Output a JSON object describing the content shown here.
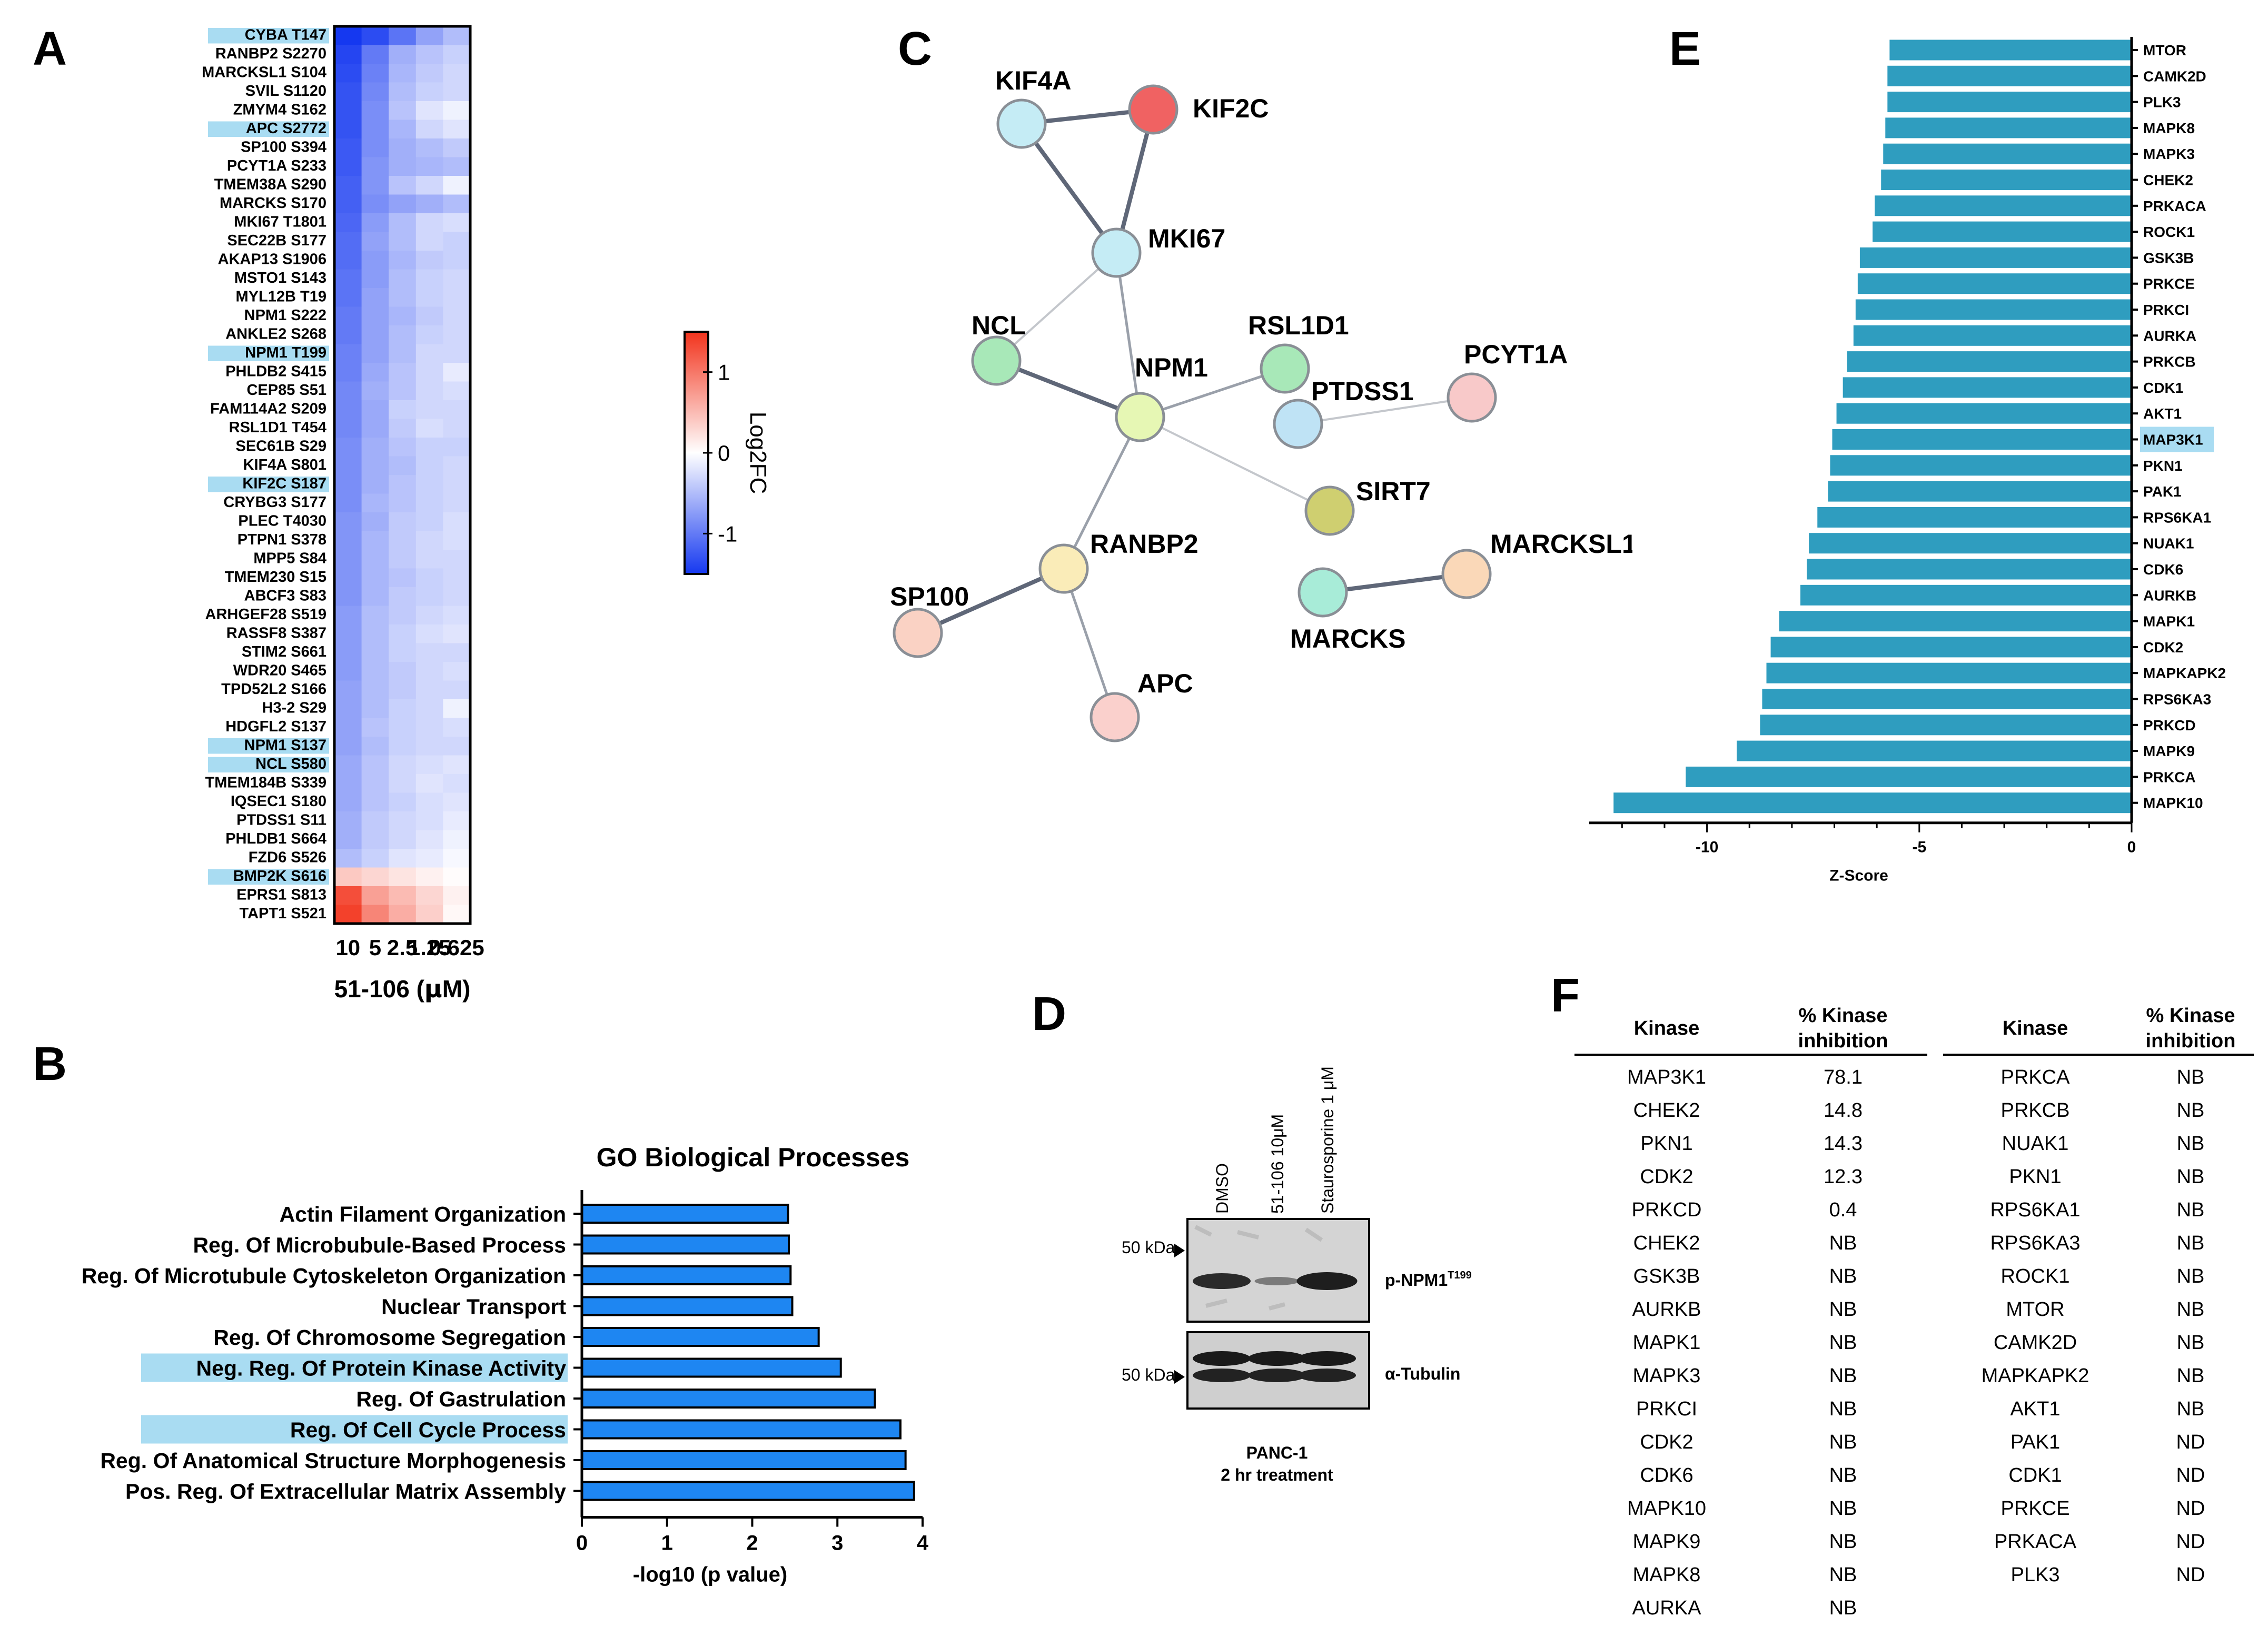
{
  "panels": {
    "A": "A",
    "B": "B",
    "C": "C",
    "D": "D",
    "E": "E",
    "F": "F"
  },
  "colors": {
    "blue_strong": "#1538f0",
    "red_strong": "#f2331c",
    "bar_blue": "#1e86f2",
    "bar_teal": "#2f9dbf",
    "highlight": "#a9dcf2"
  },
  "heatmap": {
    "columns": [
      "10",
      "5",
      "2.5",
      "1.25",
      "0.625"
    ],
    "xlabel_prefix": "51-106 (",
    "xlabel_mu": "μ",
    "xlabel_suffix": "M)",
    "colorbar_label": "Log2FC",
    "colorbar_ticks": [
      "1",
      "0",
      "-1"
    ],
    "colorbar_range": [
      -1.5,
      1.5
    ],
    "rows": [
      {
        "label": "CYBA T147",
        "hl": true,
        "v": [
          -1.6,
          -1.35,
          -1.05,
          -0.7,
          -0.5
        ]
      },
      {
        "label": "RANBP2 S2270",
        "hl": false,
        "v": [
          -1.4,
          -1.0,
          -0.6,
          -0.45,
          -0.35
        ]
      },
      {
        "label": "MARCKSL1 S104",
        "hl": false,
        "v": [
          -1.35,
          -0.95,
          -0.55,
          -0.4,
          -0.3
        ]
      },
      {
        "label": "SVIL S1120",
        "hl": false,
        "v": [
          -1.3,
          -0.9,
          -0.5,
          -0.35,
          -0.3
        ]
      },
      {
        "label": "ZMYM4 S162",
        "hl": false,
        "v": [
          -1.3,
          -0.85,
          -0.45,
          -0.2,
          -0.1
        ]
      },
      {
        "label": "APC S2772",
        "hl": true,
        "v": [
          -1.3,
          -0.85,
          -0.55,
          -0.3,
          -0.2
        ]
      },
      {
        "label": "SP100 S394",
        "hl": false,
        "v": [
          -1.25,
          -0.85,
          -0.6,
          -0.5,
          -0.4
        ]
      },
      {
        "label": "PCYT1A S233",
        "hl": false,
        "v": [
          -1.25,
          -0.8,
          -0.6,
          -0.55,
          -0.5
        ]
      },
      {
        "label": "TMEM38A S290",
        "hl": false,
        "v": [
          -1.2,
          -0.8,
          -0.45,
          -0.3,
          -0.1
        ]
      },
      {
        "label": "MARCKS S170",
        "hl": false,
        "v": [
          -1.2,
          -0.85,
          -0.7,
          -0.6,
          -0.5
        ]
      },
      {
        "label": "MKI67 T1801",
        "hl": false,
        "v": [
          -1.15,
          -0.75,
          -0.5,
          -0.3,
          -0.25
        ]
      },
      {
        "label": "SEC22B S177",
        "hl": false,
        "v": [
          -1.1,
          -0.7,
          -0.5,
          -0.3,
          -0.35
        ]
      },
      {
        "label": "AKAP13 S1906",
        "hl": false,
        "v": [
          -1.1,
          -0.75,
          -0.55,
          -0.4,
          -0.35
        ]
      },
      {
        "label": "MSTO1 S143",
        "hl": false,
        "v": [
          -1.05,
          -0.75,
          -0.5,
          -0.35,
          -0.3
        ]
      },
      {
        "label": "MYL12B T19",
        "hl": false,
        "v": [
          -1.05,
          -0.7,
          -0.5,
          -0.35,
          -0.3
        ]
      },
      {
        "label": "NPM1 S222",
        "hl": false,
        "v": [
          -1.0,
          -0.7,
          -0.55,
          -0.4,
          -0.3
        ]
      },
      {
        "label": "ANKLE2 S268",
        "hl": false,
        "v": [
          -1.0,
          -0.7,
          -0.5,
          -0.35,
          -0.3
        ]
      },
      {
        "label": "NPM1 T199",
        "hl": true,
        "v": [
          -0.95,
          -0.7,
          -0.5,
          -0.3,
          -0.3
        ]
      },
      {
        "label": "PHLDB2 S415",
        "hl": false,
        "v": [
          -0.95,
          -0.65,
          -0.45,
          -0.3,
          -0.15
        ]
      },
      {
        "label": "CEP85 S51",
        "hl": false,
        "v": [
          -0.9,
          -0.6,
          -0.45,
          -0.3,
          -0.25
        ]
      },
      {
        "label": "FAM114A2 S209",
        "hl": false,
        "v": [
          -0.9,
          -0.65,
          -0.35,
          -0.3,
          -0.3
        ]
      },
      {
        "label": "RSL1D1 T454",
        "hl": false,
        "v": [
          -0.9,
          -0.65,
          -0.4,
          -0.25,
          -0.3
        ]
      },
      {
        "label": "SEC61B S29",
        "hl": false,
        "v": [
          -0.85,
          -0.6,
          -0.45,
          -0.35,
          -0.35
        ]
      },
      {
        "label": "KIF4A S801",
        "hl": false,
        "v": [
          -0.85,
          -0.6,
          -0.5,
          -0.35,
          -0.3
        ]
      },
      {
        "label": "KIF2C S187",
        "hl": true,
        "v": [
          -0.85,
          -0.6,
          -0.45,
          -0.35,
          -0.3
        ]
      },
      {
        "label": "CRYBG3 S177",
        "hl": false,
        "v": [
          -0.85,
          -0.55,
          -0.45,
          -0.35,
          -0.3
        ]
      },
      {
        "label": "PLEC T4030",
        "hl": false,
        "v": [
          -0.8,
          -0.6,
          -0.4,
          -0.35,
          -0.25
        ]
      },
      {
        "label": "PTPN1 S378",
        "hl": false,
        "v": [
          -0.8,
          -0.55,
          -0.4,
          -0.3,
          -0.25
        ]
      },
      {
        "label": "MPP5 S84",
        "hl": false,
        "v": [
          -0.8,
          -0.55,
          -0.4,
          -0.3,
          -0.3
        ]
      },
      {
        "label": "TMEM230 S15",
        "hl": false,
        "v": [
          -0.8,
          -0.55,
          -0.45,
          -0.35,
          -0.3
        ]
      },
      {
        "label": "ABCF3 S83",
        "hl": false,
        "v": [
          -0.8,
          -0.55,
          -0.4,
          -0.35,
          -0.3
        ]
      },
      {
        "label": "ARHGEF28 S519",
        "hl": false,
        "v": [
          -0.75,
          -0.5,
          -0.4,
          -0.3,
          -0.25
        ]
      },
      {
        "label": "RASSF8 S387",
        "hl": false,
        "v": [
          -0.75,
          -0.5,
          -0.35,
          -0.25,
          -0.2
        ]
      },
      {
        "label": "STIM2 S661",
        "hl": false,
        "v": [
          -0.75,
          -0.5,
          -0.35,
          -0.3,
          -0.3
        ]
      },
      {
        "label": "WDR20 S465",
        "hl": false,
        "v": [
          -0.75,
          -0.5,
          -0.4,
          -0.3,
          -0.25
        ]
      },
      {
        "label": "TPD52L2 S166",
        "hl": false,
        "v": [
          -0.7,
          -0.5,
          -0.4,
          -0.3,
          -0.3
        ]
      },
      {
        "label": "H3-2 S29",
        "hl": false,
        "v": [
          -0.7,
          -0.5,
          -0.35,
          -0.3,
          -0.1
        ]
      },
      {
        "label": "HDGFL2 S137",
        "hl": false,
        "v": [
          -0.7,
          -0.45,
          -0.35,
          -0.3,
          -0.25
        ]
      },
      {
        "label": "NPM1 S137",
        "hl": true,
        "v": [
          -0.7,
          -0.5,
          -0.35,
          -0.3,
          -0.3
        ]
      },
      {
        "label": "NCL S580",
        "hl": true,
        "v": [
          -0.65,
          -0.45,
          -0.3,
          -0.25,
          -0.2
        ]
      },
      {
        "label": "TMEM184B S339",
        "hl": false,
        "v": [
          -0.65,
          -0.45,
          -0.3,
          -0.2,
          -0.25
        ]
      },
      {
        "label": "IQSEC1 S180",
        "hl": false,
        "v": [
          -0.65,
          -0.45,
          -0.35,
          -0.25,
          -0.2
        ]
      },
      {
        "label": "PTDSS1 S11",
        "hl": false,
        "v": [
          -0.6,
          -0.4,
          -0.3,
          -0.25,
          -0.15
        ]
      },
      {
        "label": "PHLDB1 S664",
        "hl": false,
        "v": [
          -0.6,
          -0.4,
          -0.3,
          -0.2,
          -0.1
        ]
      },
      {
        "label": "FZD6 S526",
        "hl": false,
        "v": [
          -0.5,
          -0.35,
          -0.2,
          -0.15,
          -0.05
        ]
      },
      {
        "label": "BMP2K S616",
        "hl": true,
        "v": [
          0.4,
          0.3,
          0.2,
          0.1,
          0.02
        ]
      },
      {
        "label": "EPRS1 S813",
        "hl": false,
        "v": [
          1.3,
          0.7,
          0.5,
          0.3,
          0.1
        ]
      },
      {
        "label": "TAPT1 S521",
        "hl": false,
        "v": [
          1.4,
          0.9,
          0.6,
          0.35,
          0.05
        ]
      }
    ]
  },
  "go": {
    "title": "GO Biological Processes",
    "xlabel": "-log10 (p value)",
    "ticks": [
      "0",
      "1",
      "2",
      "3",
      "4"
    ],
    "xlim": [
      0,
      4
    ],
    "bars": [
      {
        "label": "Actin Filament Organization",
        "value": 2.42,
        "hl": false
      },
      {
        "label": "Reg. Of Microbubule-Based Process",
        "value": 2.43,
        "hl": false
      },
      {
        "label": "Reg. Of Microtubule Cytoskeleton Organization",
        "value": 2.45,
        "hl": false
      },
      {
        "label": "Nuclear Transport",
        "value": 2.47,
        "hl": false
      },
      {
        "label": "Reg. Of Chromosome Segregation",
        "value": 2.78,
        "hl": false
      },
      {
        "label": "Neg. Reg. Of Protein Kinase Activity",
        "value": 3.04,
        "hl": true
      },
      {
        "label": "Reg. Of Gastrulation",
        "value": 3.44,
        "hl": false
      },
      {
        "label": "Reg. Of Cell Cycle Process",
        "value": 3.74,
        "hl": true
      },
      {
        "label": "Reg. Of Anatomical Structure Morphogenesis",
        "value": 3.8,
        "hl": false
      },
      {
        "label": "Pos. Reg. Of Extracellular Matrix Assembly",
        "value": 3.9,
        "hl": false
      }
    ]
  },
  "network": {
    "nodes": [
      {
        "id": "KIF4A",
        "label": "KIF4A",
        "color": "#c5ecf5"
      },
      {
        "id": "KIF2C",
        "label": "KIF2C",
        "color": "#f06262"
      },
      {
        "id": "MKI67",
        "label": "MKI67",
        "color": "#c5ecf5"
      },
      {
        "id": "NCL",
        "label": "NCL",
        "color": "#a8e8b8"
      },
      {
        "id": "NPM1",
        "label": "NPM1",
        "color": "#e6f7b4"
      },
      {
        "id": "RSL1D1",
        "label": "RSL1D1",
        "color": "#a8e8b8"
      },
      {
        "id": "PTDSS1",
        "label": "PTDSS1",
        "color": "#bfe3f5"
      },
      {
        "id": "PCYT1A",
        "label": "PCYT1A",
        "color": "#f8c9c9"
      },
      {
        "id": "SIRT7",
        "label": "SIRT7",
        "color": "#cfcf70"
      },
      {
        "id": "RANBP2",
        "label": "RANBP2",
        "color": "#faecb8"
      },
      {
        "id": "SP100",
        "label": "SP100",
        "color": "#fad2c4"
      },
      {
        "id": "APC",
        "label": "APC",
        "color": "#fad0cc"
      },
      {
        "id": "MARCKS",
        "label": "MARCKS",
        "color": "#a8ecd8"
      },
      {
        "id": "MARCKSL1",
        "label": "MARCKSL1",
        "color": "#fad8b8"
      }
    ],
    "edges": [
      [
        "KIF4A",
        "KIF2C",
        "strong"
      ],
      [
        "KIF4A",
        "MKI67",
        "strong"
      ],
      [
        "KIF2C",
        "MKI67",
        "strong"
      ],
      [
        "MKI67",
        "NCL",
        "weak"
      ],
      [
        "MKI67",
        "NPM1",
        "mid"
      ],
      [
        "NCL",
        "NPM1",
        "strong"
      ],
      [
        "NPM1",
        "RSL1D1",
        "mid"
      ],
      [
        "NPM1",
        "SIRT7",
        "weak"
      ],
      [
        "NPM1",
        "RANBP2",
        "mid"
      ],
      [
        "RANBP2",
        "SP100",
        "strong"
      ],
      [
        "RANBP2",
        "APC",
        "mid"
      ],
      [
        "PTDSS1",
        "PCYT1A",
        "weak"
      ],
      [
        "MARCKS",
        "MARCKSL1",
        "strong"
      ]
    ]
  },
  "western": {
    "lanes": [
      "DMSO",
      "51-106 10μM",
      "Staurosporine 1 μM"
    ],
    "marker1": "50 kDa",
    "marker2": "50 kDa",
    "band1_label": "p-NPM1",
    "band1_sup": "T199",
    "band2_label": "α-Tubulin",
    "caption1": "PANC-1",
    "caption2": "2 hr treatment",
    "stray_mark": "-"
  },
  "kinase_z": {
    "xlabel": "Z-Score",
    "ticks": [
      "-10",
      "-5",
      "0"
    ],
    "xlim": [
      -12.5,
      0
    ],
    "bars": [
      {
        "label": "MTOR",
        "value": -5.7,
        "hl": false
      },
      {
        "label": "CAMK2D",
        "value": -5.75,
        "hl": false
      },
      {
        "label": "PLK3",
        "value": -5.75,
        "hl": false
      },
      {
        "label": "MAPK8",
        "value": -5.8,
        "hl": false
      },
      {
        "label": "MAPK3",
        "value": -5.85,
        "hl": false
      },
      {
        "label": "CHEK2",
        "value": -5.9,
        "hl": false
      },
      {
        "label": "PRKACA",
        "value": -6.05,
        "hl": false
      },
      {
        "label": "ROCK1",
        "value": -6.1,
        "hl": false
      },
      {
        "label": "GSK3B",
        "value": -6.4,
        "hl": false
      },
      {
        "label": "PRKCE",
        "value": -6.45,
        "hl": false
      },
      {
        "label": "PRKCI",
        "value": -6.5,
        "hl": false
      },
      {
        "label": "AURKA",
        "value": -6.55,
        "hl": false
      },
      {
        "label": "PRKCB",
        "value": -6.7,
        "hl": false
      },
      {
        "label": "CDK1",
        "value": -6.8,
        "hl": false
      },
      {
        "label": "AKT1",
        "value": -6.95,
        "hl": false
      },
      {
        "label": "MAP3K1",
        "value": -7.05,
        "hl": true
      },
      {
        "label": "PKN1",
        "value": -7.1,
        "hl": false
      },
      {
        "label": "PAK1",
        "value": -7.15,
        "hl": false
      },
      {
        "label": "RPS6KA1",
        "value": -7.4,
        "hl": false
      },
      {
        "label": "NUAK1",
        "value": -7.6,
        "hl": false
      },
      {
        "label": "CDK6",
        "value": -7.65,
        "hl": false
      },
      {
        "label": "AURKB",
        "value": -7.8,
        "hl": false
      },
      {
        "label": "MAPK1",
        "value": -8.3,
        "hl": false
      },
      {
        "label": "CDK2",
        "value": -8.5,
        "hl": false
      },
      {
        "label": "MAPKAPK2",
        "value": -8.6,
        "hl": false
      },
      {
        "label": "RPS6KA3",
        "value": -8.7,
        "hl": false
      },
      {
        "label": "PRKCD",
        "value": -8.75,
        "hl": false
      },
      {
        "label": "MAPK9",
        "value": -9.3,
        "hl": false
      },
      {
        "label": "PRKCA",
        "value": -10.5,
        "hl": false
      },
      {
        "label": "MAPK10",
        "value": -12.2,
        "hl": false
      }
    ]
  },
  "kinase_table": {
    "h_kinase": "Kinase",
    "h_inhib1": "% Kinase",
    "h_inhib2": "inhibition",
    "left": [
      {
        "k": "MAP3K1",
        "v": "78.1"
      },
      {
        "k": "CHEK2",
        "v": "14.8"
      },
      {
        "k": "PKN1",
        "v": "14.3"
      },
      {
        "k": "CDK2",
        "v": "12.3"
      },
      {
        "k": "PRKCD",
        "v": "0.4"
      },
      {
        "k": "CHEK2",
        "v": "NB"
      },
      {
        "k": "GSK3B",
        "v": "NB"
      },
      {
        "k": "AURKB",
        "v": "NB"
      },
      {
        "k": "MAPK1",
        "v": "NB"
      },
      {
        "k": "MAPK3",
        "v": "NB"
      },
      {
        "k": "PRKCI",
        "v": "NB"
      },
      {
        "k": "CDK2",
        "v": "NB"
      },
      {
        "k": "CDK6",
        "v": "NB"
      },
      {
        "k": "MAPK10",
        "v": "NB"
      },
      {
        "k": "MAPK9",
        "v": "NB"
      },
      {
        "k": "MAPK8",
        "v": "NB"
      },
      {
        "k": "AURKA",
        "v": "NB"
      }
    ],
    "right": [
      {
        "k": "PRKCA",
        "v": "NB"
      },
      {
        "k": "PRKCB",
        "v": "NB"
      },
      {
        "k": "NUAK1",
        "v": "NB"
      },
      {
        "k": "PKN1",
        "v": "NB"
      },
      {
        "k": "RPS6KA1",
        "v": "NB"
      },
      {
        "k": "RPS6KA3",
        "v": "NB"
      },
      {
        "k": "ROCK1",
        "v": "NB"
      },
      {
        "k": "MTOR",
        "v": "NB"
      },
      {
        "k": "CAMK2D",
        "v": "NB"
      },
      {
        "k": "MAPKAPK2",
        "v": "NB"
      },
      {
        "k": "AKT1",
        "v": "NB"
      },
      {
        "k": "PAK1",
        "v": "ND"
      },
      {
        "k": "CDK1",
        "v": "ND"
      },
      {
        "k": "PRKCE",
        "v": "ND"
      },
      {
        "k": "PRKACA",
        "v": "ND"
      },
      {
        "k": "PLK3",
        "v": "ND"
      }
    ]
  }
}
